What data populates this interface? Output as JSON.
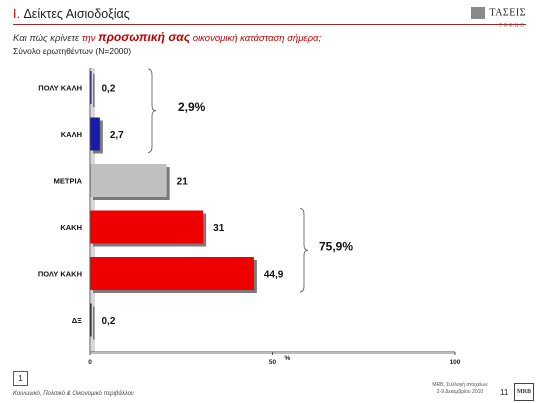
{
  "header": {
    "section_number": "I.",
    "section_title": "Δείκτες Αισιοδοξίας",
    "question_prefix": "Και πώς κρίνετε",
    "question_accent": "την",
    "question_emphasis": "προσωπική σας",
    "question_suffix": "οικονομική κατάσταση σήμερα;",
    "base": "Σύνολο ερωτηθέντων (Ν=2000)",
    "logo_name": "ΤΑΣΕΙΣ",
    "logo_sub": "TREND"
  },
  "chart_data": {
    "type": "bar",
    "orientation": "horizontal",
    "categories": [
      "ΠΟΛΥ ΚΑΛΗ",
      "ΚΑΛΗ",
      "ΜΕΤΡΙΑ",
      "ΚΑΚΗ",
      "ΠΟΛΥ ΚΑΚΗ",
      "ΔΞ"
    ],
    "values": [
      0.2,
      2.7,
      21,
      31,
      44.9,
      0.2
    ],
    "value_labels": [
      "0,2",
      "2,7",
      "21",
      "31",
      "44,9",
      "0,2"
    ],
    "colors": [
      "#1a1aa8",
      "#1a1aa8",
      "#c0c0c0",
      "#ee0000",
      "#ee0000",
      "#111111"
    ],
    "xlim": [
      0,
      100
    ],
    "x_ticks": [
      "0",
      "50",
      "100"
    ],
    "x_unit": "%",
    "groups": [
      {
        "label": "2,9%",
        "from": 0,
        "to": 1
      },
      {
        "label": "75,9%",
        "from": 3,
        "to": 4
      }
    ],
    "grid": false
  },
  "footer": {
    "box_number": "1",
    "left_text": "Κοινωνικό, Πολιτικό & Οικονομικό περιβάλλον",
    "right_line1": "MRB, Συλλογή στοιχείων",
    "right_line2": "2-9 Δεκεμβρίου 2010",
    "page": "11",
    "mrb": "MRB"
  }
}
